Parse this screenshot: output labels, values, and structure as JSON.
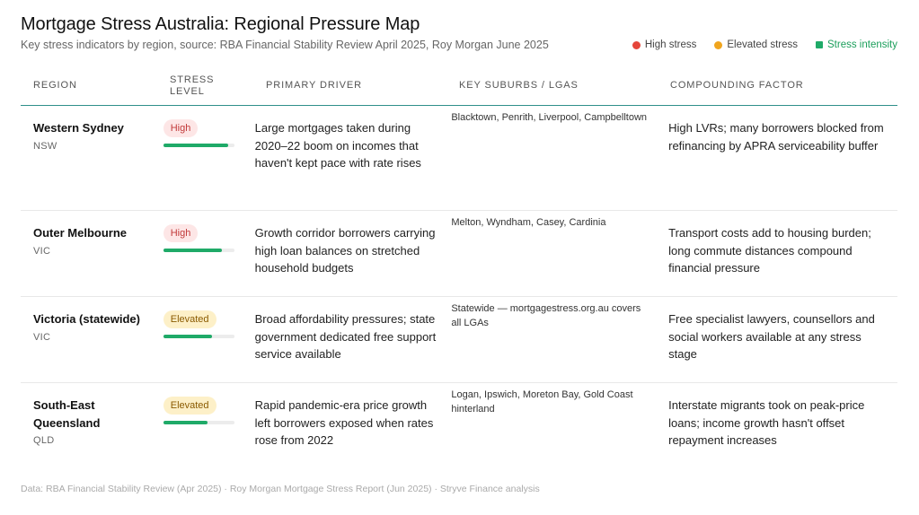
{
  "header": {
    "title": "Mortgage Stress Australia: Regional Pressure Map",
    "subtitle": "Key stress indicators by region, source: RBA Financial Stability Review April 2025, Roy Morgan June 2025"
  },
  "legend": {
    "high": {
      "label": "High stress",
      "color": "#e5453a"
    },
    "elevated": {
      "label": "Elevated stress",
      "color": "#f0a51e"
    },
    "intensity": {
      "label": "Stress intensity",
      "color": "#1faa68"
    }
  },
  "columns": {
    "region": "REGION",
    "stress_level": "STRESS LEVEL",
    "primary_driver": "PRIMARY DRIVER",
    "key_suburbs": "KEY SUBURBS / LGAS",
    "compounding": "COMPOUNDING FACTOR"
  },
  "rows": [
    {
      "region": "Western Sydney",
      "state": "NSW",
      "stress": "High",
      "intensity": 0.92,
      "driver": "Large mortgages taken during 2020–22 boom on incomes that haven't kept pace with rate rises",
      "suburbs": "Blacktown, Penrith, Liverpool, Campbelltown",
      "compounding": "High LVRs; many borrowers blocked from refinancing by APRA serviceability buffer"
    },
    {
      "region": "Outer Melbourne",
      "state": "VIC",
      "stress": "High",
      "intensity": 0.83,
      "driver": "Growth corridor borrowers carrying high loan balances on stretched household budgets",
      "suburbs": "Melton, Wyndham, Casey, Cardinia",
      "compounding": "Transport costs add to housing burden; long commute distances compound financial pressure"
    },
    {
      "region": "Victoria (statewide)",
      "state": "VIC",
      "stress": "Elevated",
      "intensity": 0.69,
      "driver": "Broad affordability pressures; state government dedicated free support service available",
      "suburbs": "Statewide — mortgagestress.org.au covers all LGAs",
      "compounding": "Free specialist lawyers, counsellors and social workers available at any stress stage"
    },
    {
      "region": "South-East Queensland",
      "state": "QLD",
      "stress": "Elevated",
      "intensity": 0.62,
      "driver": "Rapid pandemic-era price growth left borrowers exposed when rates rose from 2022",
      "suburbs": "Logan, Ipswich, Moreton Bay, Gold Coast hinterland",
      "compounding": "Interstate migrants took on peak-price loans; income growth hasn't offset repayment increases"
    }
  ],
  "footer": "Data: RBA Financial Stability Review (Apr 2025) · Roy Morgan Mortgage Stress Report (Jun 2025) · Stryve Finance analysis"
}
